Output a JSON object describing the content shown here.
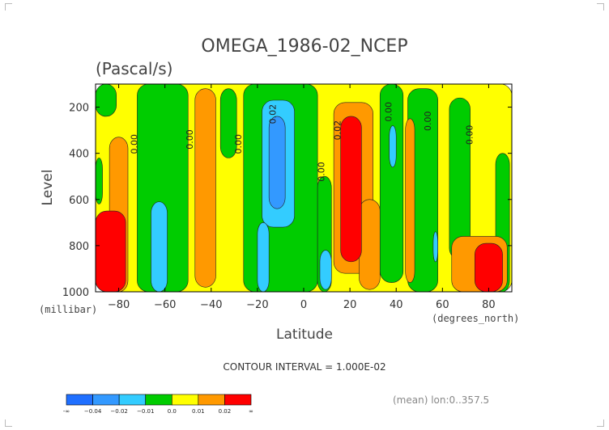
{
  "chart_data": {
    "type": "heatmap",
    "title": "OMEGA_1986-02_NCEP",
    "subtitle": "(Pascal/s)",
    "xlabel": "Latitude",
    "xunit": "(degrees_north)",
    "ylabel": "Level",
    "yunit": "(millibar)",
    "xlim": [
      -90,
      90
    ],
    "ylim": [
      1000,
      100
    ],
    "x_ticks": [
      -80,
      -60,
      -40,
      -20,
      0,
      20,
      40,
      60,
      80
    ],
    "y_ticks": [
      200,
      400,
      600,
      800,
      1000
    ],
    "contour_interval_text": "CONTOUR INTERVAL = 1.000E-02",
    "footer_text": "(mean) lon:0..357.5",
    "colorbar": {
      "labels": [
        "-∞",
        "−0.04",
        "−0.02",
        "−0.01",
        "0.0",
        "0.01",
        "0.02",
        "∞"
      ],
      "colors": [
        "#1f6fff",
        "#3399ff",
        "#33ccff",
        "#00cc00",
        "#ffff00",
        "#ff9900",
        "#ff0000"
      ]
    },
    "contour_labels": [
      {
        "text": "0.00",
        "lat": -72,
        "lev": 360
      },
      {
        "text": "0.00",
        "lat": -48,
        "lev": 340
      },
      {
        "text": "0.00",
        "lat": -27,
        "lev": 360
      },
      {
        "text": "0.02",
        "lat": -12,
        "lev": 230
      },
      {
        "text": "0.02",
        "lat": 16,
        "lev": 300
      },
      {
        "text": "0.00",
        "lat": 9,
        "lev": 480
      },
      {
        "text": "0.00",
        "lat": 38,
        "lev": 220
      },
      {
        "text": "0.00",
        "lat": 55,
        "lev": 260
      },
      {
        "text": "0.00",
        "lat": 73,
        "lev": 320
      }
    ],
    "regions": [
      {
        "color": "#ffff00",
        "lat_min": -90,
        "lat_max": 90,
        "lev_top": 100,
        "lev_bot": 1000
      },
      {
        "color": "#00cc00",
        "lat_min": -90,
        "lat_max": -81,
        "lev_top": 100,
        "lev_bot": 240
      },
      {
        "color": "#00cc00",
        "lat_min": -90,
        "lat_max": -87,
        "lev_top": 420,
        "lev_bot": 620
      },
      {
        "color": "#00cc00",
        "lat_min": -72,
        "lat_max": -50,
        "lev_top": 100,
        "lev_bot": 1000
      },
      {
        "color": "#00cc00",
        "lat_min": -36,
        "lat_max": -29,
        "lev_top": 120,
        "lev_bot": 420
      },
      {
        "color": "#00cc00",
        "lat_min": -26,
        "lat_max": 6,
        "lev_top": 100,
        "lev_bot": 1000
      },
      {
        "color": "#00cc00",
        "lat_min": 6,
        "lat_max": 12,
        "lev_top": 500,
        "lev_bot": 1000
      },
      {
        "color": "#00cc00",
        "lat_min": 33,
        "lat_max": 43,
        "lev_top": 100,
        "lev_bot": 960
      },
      {
        "color": "#00cc00",
        "lat_min": 45,
        "lat_max": 58,
        "lev_top": 120,
        "lev_bot": 1000
      },
      {
        "color": "#00cc00",
        "lat_min": 63,
        "lat_max": 72,
        "lev_top": 160,
        "lev_bot": 860
      },
      {
        "color": "#00cc00",
        "lat_min": 83,
        "lat_max": 89,
        "lev_top": 400,
        "lev_bot": 1000
      },
      {
        "color": "#ff9900",
        "lat_min": -84,
        "lat_max": -76,
        "lev_top": 330,
        "lev_bot": 1000
      },
      {
        "color": "#ff9900",
        "lat_min": -47,
        "lat_max": -38,
        "lev_top": 120,
        "lev_bot": 980
      },
      {
        "color": "#ff9900",
        "lat_min": 13,
        "lat_max": 30,
        "lev_top": 180,
        "lev_bot": 920
      },
      {
        "color": "#ff9900",
        "lat_min": 24,
        "lat_max": 33,
        "lev_top": 600,
        "lev_bot": 990
      },
      {
        "color": "#ff9900",
        "lat_min": 44,
        "lat_max": 48,
        "lev_top": 250,
        "lev_bot": 960
      },
      {
        "color": "#ff9900",
        "lat_min": 64,
        "lat_max": 88,
        "lev_top": 760,
        "lev_bot": 1000
      },
      {
        "color": "#33ccff",
        "lat_min": -66,
        "lat_max": -59,
        "lev_top": 610,
        "lev_bot": 1000
      },
      {
        "color": "#33ccff",
        "lat_min": -18,
        "lat_max": -4,
        "lev_top": 170,
        "lev_bot": 720
      },
      {
        "color": "#33ccff",
        "lat_min": -20,
        "lat_max": -15,
        "lev_top": 700,
        "lev_bot": 1000
      },
      {
        "color": "#33ccff",
        "lat_min": 7,
        "lat_max": 12,
        "lev_top": 820,
        "lev_bot": 990
      },
      {
        "color": "#33ccff",
        "lat_min": 37,
        "lat_max": 40,
        "lev_top": 280,
        "lev_bot": 460
      },
      {
        "color": "#33ccff",
        "lat_min": 56,
        "lat_max": 58,
        "lev_top": 740,
        "lev_bot": 870
      },
      {
        "color": "#3399ff",
        "lat_min": -15,
        "lat_max": -8,
        "lev_top": 240,
        "lev_bot": 640
      },
      {
        "color": "#ff0000",
        "lat_min": -90,
        "lat_max": -77,
        "lev_top": 650,
        "lev_bot": 1000
      },
      {
        "color": "#ff0000",
        "lat_min": 16,
        "lat_max": 25,
        "lev_top": 240,
        "lev_bot": 870
      },
      {
        "color": "#ff0000",
        "lat_min": 74,
        "lat_max": 86,
        "lev_top": 790,
        "lev_bot": 1000
      }
    ]
  }
}
